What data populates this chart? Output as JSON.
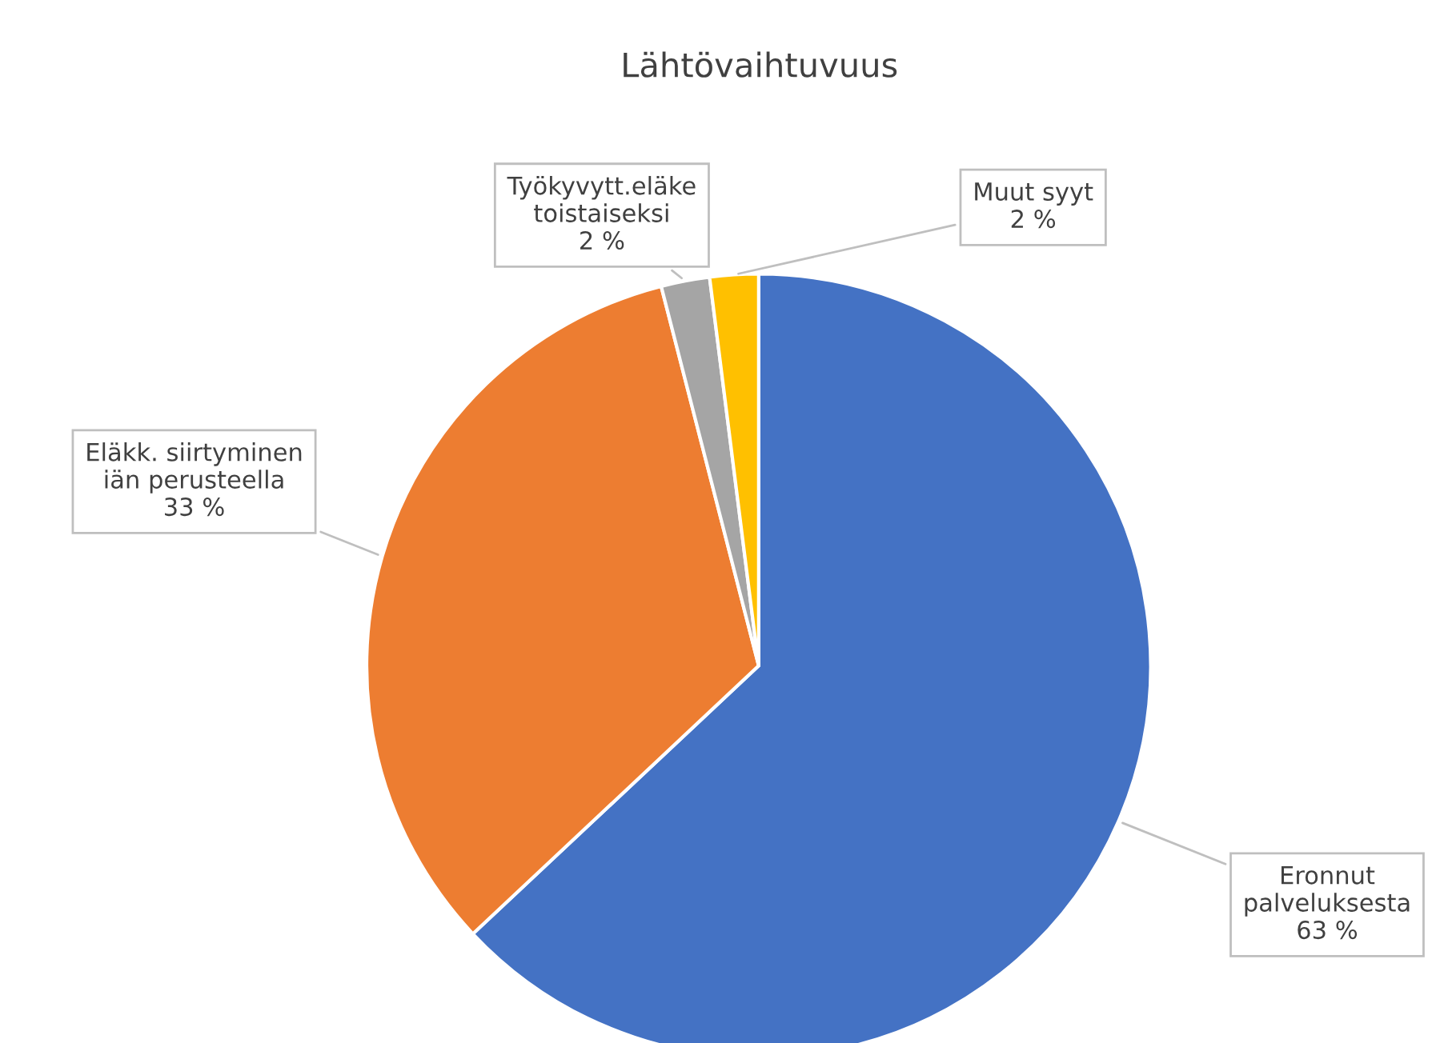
{
  "chart_data": {
    "type": "pie",
    "title": "Lähtövaihtuvuus",
    "categories": [
      "Eronnut\npalveluksesta",
      "Eläkk. siirtyminen\niän perusteella",
      "Työkyvytt.eläke\ntoistaiseksi",
      "Muut syyt"
    ],
    "values": [
      63,
      33,
      2,
      2
    ],
    "value_labels": [
      "63 %",
      "33 %",
      "2 %",
      "2 %"
    ],
    "colors": [
      "#4472c4",
      "#ed7d31",
      "#a5a5a5",
      "#ffc000"
    ],
    "legend": false
  }
}
